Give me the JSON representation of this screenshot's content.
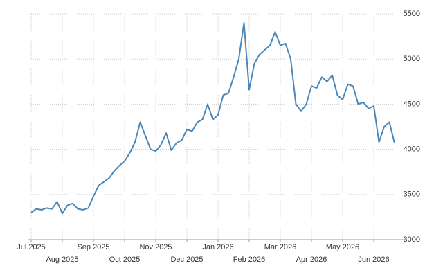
{
  "chart_data": {
    "type": "line",
    "categories": [
      "Jul 2025",
      null,
      null,
      null,
      null,
      null,
      "Aug 2025",
      null,
      null,
      null,
      null,
      null,
      "Sep 2025",
      null,
      null,
      null,
      null,
      null,
      "Oct 2025",
      null,
      null,
      null,
      null,
      null,
      "Nov 2025",
      null,
      null,
      null,
      null,
      null,
      "Dec 2025",
      null,
      null,
      null,
      null,
      null,
      "Jan 2026",
      null,
      null,
      null,
      null,
      null,
      "Feb 2026",
      null,
      null,
      null,
      null,
      null,
      "Mar 2026",
      null,
      null,
      null,
      null,
      null,
      "Apr 2026",
      null,
      null,
      null,
      null,
      null,
      "May 2026",
      null,
      null,
      null,
      null,
      null,
      "Jun 2026",
      null,
      null,
      null,
      null
    ],
    "series": [
      {
        "color": "#4a86b8",
        "values": [
          3300,
          3340,
          3330,
          3350,
          3340,
          3420,
          3290,
          3380,
          3400,
          3340,
          3330,
          3350,
          3480,
          3600,
          3640,
          3680,
          3760,
          3820,
          3870,
          3960,
          4080,
          4300,
          4150,
          4000,
          3980,
          4050,
          4180,
          3990,
          4070,
          4100,
          4220,
          4200,
          4300,
          4330,
          4500,
          4330,
          4380,
          4600,
          4620,
          4800,
          5000,
          5400,
          4660,
          4950,
          5050,
          5100,
          5150,
          5300,
          5150,
          5170,
          5000,
          4500,
          4420,
          4500,
          4700,
          4680,
          4800,
          4750,
          4820,
          4600,
          4550,
          4720,
          4700,
          4500,
          4520,
          4450,
          4480,
          4080,
          4250,
          4300,
          4070
        ]
      }
    ],
    "ylim": [
      3000,
      5500
    ],
    "yticks": [
      3000,
      3500,
      4000,
      4500,
      5000,
      5500
    ],
    "grid": true
  }
}
